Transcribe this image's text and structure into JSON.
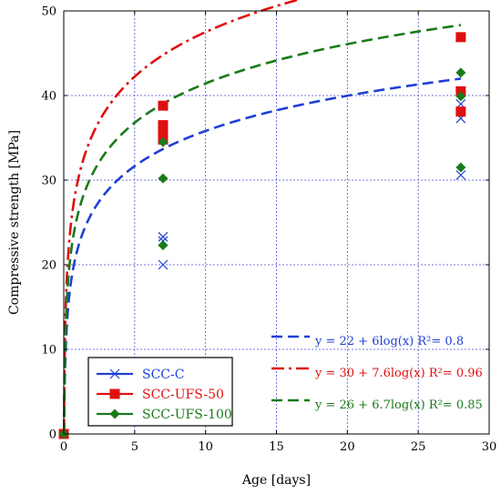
{
  "chart_data": {
    "type": "scatter",
    "title": "",
    "xlabel": "Age [days]",
    "ylabel": "Compressive strength [MPa]",
    "xlim": [
      0,
      30
    ],
    "ylim": [
      0,
      50
    ],
    "xticks": [
      "0",
      "5",
      "10",
      "15",
      "20",
      "25",
      "30"
    ],
    "yticks": [
      "0",
      "10",
      "20",
      "30",
      "40",
      "50"
    ],
    "grid": true,
    "legend_position": "bottom-left",
    "series": [
      {
        "name": "SCC-C",
        "marker": "x",
        "color": "#1f3fd6",
        "points": [
          [
            0,
            0
          ],
          [
            7,
            20.0
          ],
          [
            7,
            22.8
          ],
          [
            7,
            23.3
          ],
          [
            28,
            30.6
          ],
          [
            28,
            37.3
          ],
          [
            28,
            39.0
          ]
        ]
      },
      {
        "name": "SCC-UFS-50",
        "marker": "square",
        "color": "#e01010",
        "points": [
          [
            0,
            0
          ],
          [
            7,
            34.8
          ],
          [
            7,
            35.7
          ],
          [
            7,
            36.5
          ],
          [
            7,
            38.8
          ],
          [
            28,
            38.1
          ],
          [
            28,
            40.5
          ],
          [
            28,
            46.9
          ]
        ]
      },
      {
        "name": "SCC-UFS-100",
        "marker": "diamond",
        "color": "#1a7a1a",
        "points": [
          [
            0,
            0
          ],
          [
            7,
            22.3
          ],
          [
            7,
            30.2
          ],
          [
            7,
            34.5
          ],
          [
            28,
            31.5
          ],
          [
            28,
            39.9
          ],
          [
            28,
            42.7
          ]
        ]
      }
    ],
    "fits": [
      {
        "label": "y = 22 + 6log(x)   R²= 0.8",
        "a": 22,
        "b": 6,
        "color": "#1f3fd6",
        "dash": "dash"
      },
      {
        "label": "y = 30 + 7.6log(x)   R²= 0.96",
        "a": 30,
        "b": 7.6,
        "color": "#e01010",
        "dash": "dashdot"
      },
      {
        "label": "y = 26 + 6.7log(x)   R²= 0.85",
        "a": 26,
        "b": 6.7,
        "color": "#1a7a1a",
        "dash": "dash"
      }
    ]
  }
}
